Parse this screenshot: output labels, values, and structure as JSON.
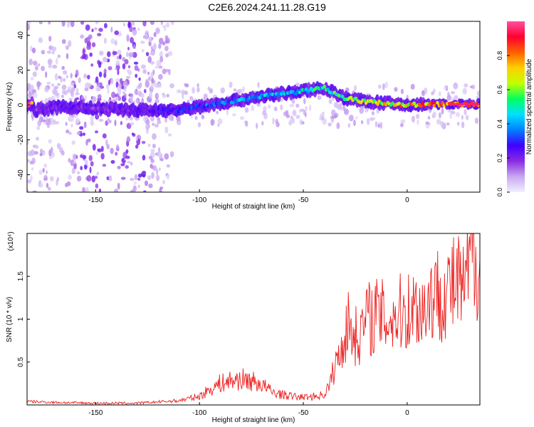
{
  "title": "C2E6.2024.241.11.28.G19",
  "chart_data": [
    {
      "type": "heatmap",
      "xlabel": "Height of straight line (km)",
      "ylabel": "Frequency (Hz)",
      "xlim": [
        -183,
        35
      ],
      "ylim": [
        -50,
        48
      ],
      "x_ticks": [
        -150,
        -100,
        -50,
        0
      ],
      "y_ticks": [
        40,
        20,
        0,
        -20,
        -40
      ],
      "colorbar": {
        "label": "Normalized spectral amplitude",
        "range": [
          0.0,
          1.0
        ],
        "ticks": [
          0.0,
          0.2,
          0.4,
          0.6,
          0.8
        ],
        "colors": [
          "#f0f0ff",
          "#c8a8f0",
          "#8a2be2",
          "#4000ff",
          "#0080ff",
          "#00e0ff",
          "#00ff60",
          "#c0ff00",
          "#ffd000",
          "#ff6000",
          "#ff0030",
          "#ff50a0"
        ]
      },
      "ridge": [
        {
          "x": -180,
          "f": -3,
          "a": 0.2
        },
        {
          "x": -165,
          "f": -1,
          "a": 0.25
        },
        {
          "x": -150,
          "f": -2,
          "a": 0.2
        },
        {
          "x": -130,
          "f": -3,
          "a": 0.25
        },
        {
          "x": -110,
          "f": -3,
          "a": 0.3
        },
        {
          "x": -90,
          "f": 1,
          "a": 0.4
        },
        {
          "x": -70,
          "f": 5,
          "a": 0.45
        },
        {
          "x": -50,
          "f": 8,
          "a": 0.5
        },
        {
          "x": -40,
          "f": 10,
          "a": 0.55
        },
        {
          "x": -30,
          "f": 4,
          "a": 0.6
        },
        {
          "x": -20,
          "f": 2,
          "a": 0.7
        },
        {
          "x": -10,
          "f": 1,
          "a": 0.75
        },
        {
          "x": 0,
          "f": 0,
          "a": 0.8
        },
        {
          "x": 10,
          "f": 0.5,
          "a": 0.85
        },
        {
          "x": 20,
          "f": 0.5,
          "a": 0.9
        },
        {
          "x": 33,
          "f": 0.5,
          "a": 0.95
        }
      ]
    },
    {
      "type": "line",
      "xlabel": "Height of straight line (km)",
      "ylabel": "SNR (10 * v/v)",
      "y_multiplier": "(x10⁴)",
      "xlim": [
        -183,
        35
      ],
      "ylim": [
        0,
        2.0
      ],
      "x_ticks": [
        -150,
        -100,
        -50,
        0
      ],
      "y_ticks": [
        1.5,
        1.0,
        0.5
      ],
      "series": [
        {
          "color": "#ee2020",
          "x": [
            -183,
            -170,
            -150,
            -130,
            -110,
            -100,
            -95,
            -90,
            -85,
            -80,
            -75,
            -70,
            -65,
            -60,
            -55,
            -50,
            -45,
            -40,
            -37,
            -35,
            -32,
            -30,
            -28,
            -25,
            -22,
            -20,
            -15,
            -10,
            -5,
            0,
            5,
            8,
            10,
            15,
            20,
            25,
            28,
            30,
            32,
            35
          ],
          "y": [
            0.04,
            0.03,
            0.02,
            0.02,
            0.05,
            0.1,
            0.18,
            0.25,
            0.28,
            0.3,
            0.28,
            0.24,
            0.15,
            0.12,
            0.1,
            0.09,
            0.1,
            0.12,
            0.25,
            0.45,
            0.6,
            0.85,
            0.95,
            0.8,
            0.85,
            1.0,
            1.05,
            1.0,
            1.05,
            1.1,
            1.15,
            1.1,
            1.25,
            1.3,
            1.35,
            1.4,
            1.3,
            1.7,
            1.85,
            1.7
          ]
        }
      ]
    }
  ]
}
